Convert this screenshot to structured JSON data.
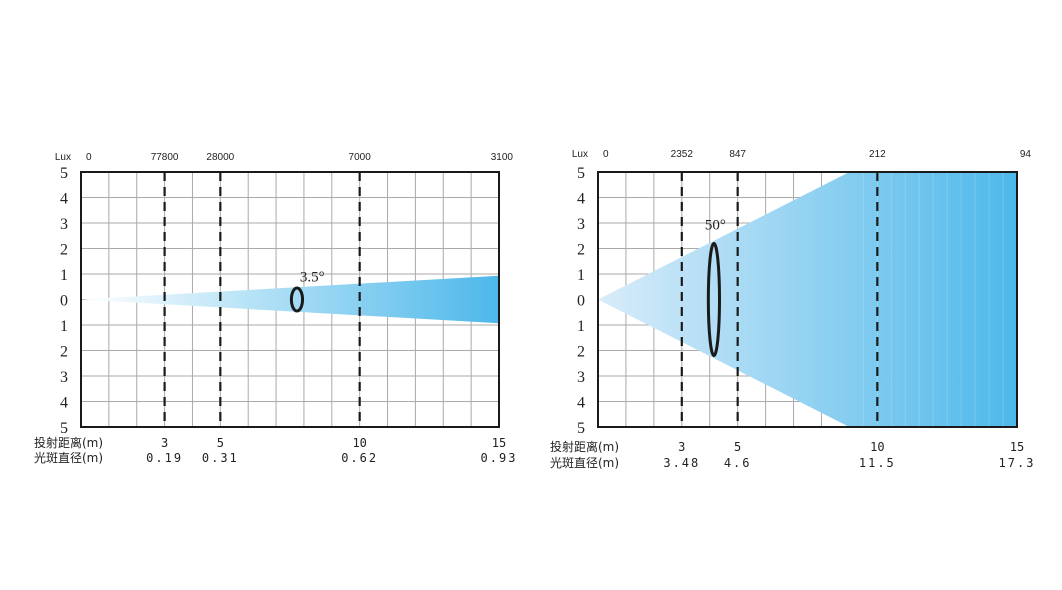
{
  "chart_data": [
    {
      "type": "area",
      "beam_angle": "3.5°",
      "lux_label": "Lux",
      "lux_origin": "0",
      "lux": [
        {
          "x": 3,
          "label": "77800"
        },
        {
          "x": 5,
          "label": "28000"
        },
        {
          "x": 10,
          "label": "7000"
        },
        {
          "x": 15,
          "label": "3100"
        }
      ],
      "y_ticks": [
        "5",
        "4",
        "3",
        "2",
        "1",
        "0",
        "1",
        "2",
        "3",
        "4",
        "5"
      ],
      "ylim": [
        -5,
        5
      ],
      "xlim": [
        0,
        15
      ],
      "distance_label": "投射距离(m)",
      "diameter_label": "光斑直径(m)",
      "distances": [
        {
          "x": 3,
          "label": "3",
          "diameter": "0.19"
        },
        {
          "x": 5,
          "label": "5",
          "diameter": "0.31"
        },
        {
          "x": 10,
          "label": "10",
          "diameter": "0.62"
        },
        {
          "x": 15,
          "label": "15",
          "diameter": "0.93"
        }
      ],
      "spot_half_width_at_15m": 0.93,
      "ellipse": {
        "x": 7.75,
        "rx": 0.2,
        "ry": 0.45
      },
      "label_pos": {
        "x": 8.3,
        "y": 0.7
      },
      "grid": true,
      "colors": {
        "beam_start": "#ffffff",
        "beam_end": "#4db8ea",
        "line": "#1a1a1a",
        "grid": "#aaaaaa"
      }
    },
    {
      "type": "area",
      "beam_angle": "50°",
      "lux_label": "Lux",
      "lux_origin": "0",
      "lux": [
        {
          "x": 3,
          "label": "2352"
        },
        {
          "x": 5,
          "label": "847"
        },
        {
          "x": 10,
          "label": "212"
        },
        {
          "x": 15,
          "label": "94"
        }
      ],
      "y_ticks": [
        "5",
        "4",
        "3",
        "2",
        "1",
        "0",
        "1",
        "2",
        "3",
        "4",
        "5"
      ],
      "ylim": [
        -5,
        5
      ],
      "xlim": [
        0,
        15
      ],
      "distance_label": "投射距离(m)",
      "diameter_label": "光斑直径(m)",
      "distances": [
        {
          "x": 3,
          "label": "3",
          "diameter": "3.48"
        },
        {
          "x": 5,
          "label": "5",
          "diameter": "4.6"
        },
        {
          "x": 10,
          "label": "10",
          "diameter": "11.5"
        },
        {
          "x": 15,
          "label": "15",
          "diameter": "17.3"
        }
      ],
      "spot_half_width_at_9m": 5,
      "ellipse": {
        "x": 4.15,
        "rx": 0.2,
        "ry": 2.2
      },
      "label_pos": {
        "x": 4.2,
        "y": 2.75
      },
      "grid": true,
      "colors": {
        "beam_start": "#d9ecfa",
        "beam_end": "#4db8ea",
        "line": "#1a1a1a",
        "grid": "#aaaaaa"
      }
    }
  ]
}
